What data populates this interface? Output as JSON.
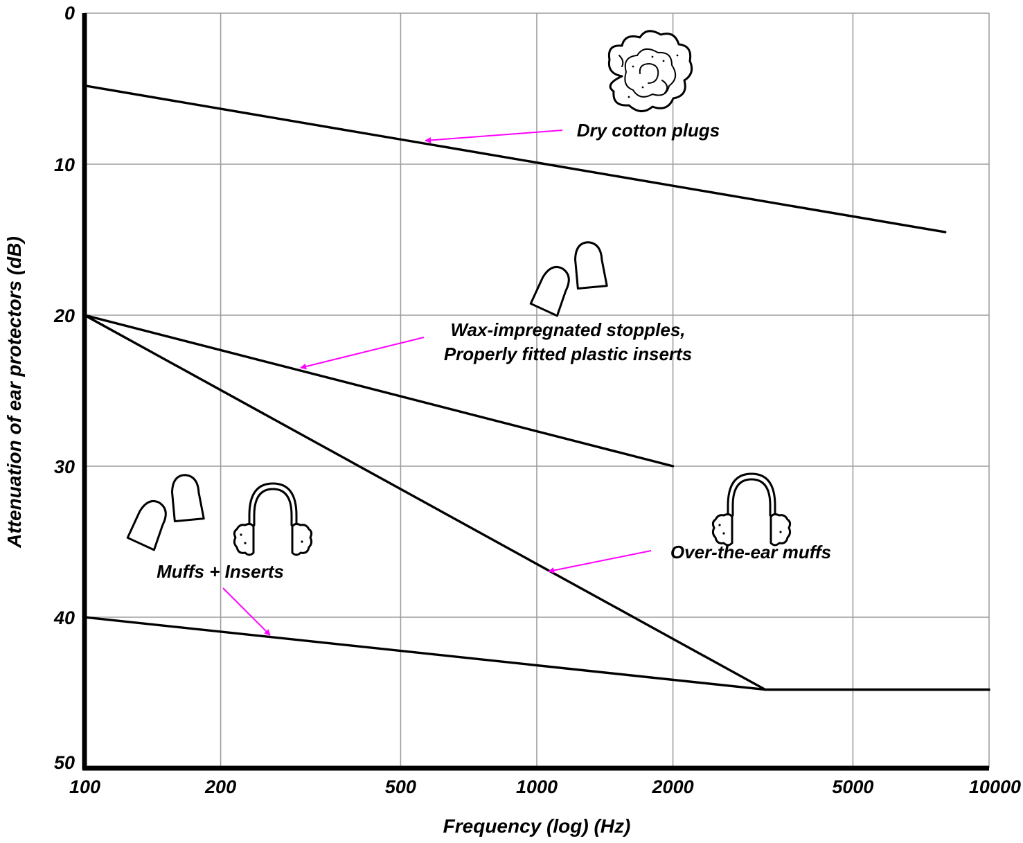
{
  "chart_data": {
    "type": "line",
    "title": "",
    "xlabel": "Frequency (log) (Hz)",
    "ylabel": "Attenuation of ear protectors (dB)",
    "x_scale": "log",
    "xlim": [
      100,
      10000
    ],
    "ylim": [
      0,
      50
    ],
    "y_inverted": true,
    "grid": true,
    "x_ticks": [
      "100",
      "200",
      "500",
      "1000",
      "2000",
      "5000",
      "10000"
    ],
    "x_tick_values": [
      100,
      200,
      500,
      1000,
      2000,
      5000,
      10000
    ],
    "y_ticks": [
      "0",
      "10",
      "20",
      "30",
      "40",
      "50"
    ],
    "y_tick_values": [
      0,
      10,
      20,
      30,
      40,
      50
    ],
    "series": [
      {
        "x": [
          100,
          8000
        ],
        "y": [
          4.8,
          14.5
        ]
      },
      {
        "x": [
          100,
          2000
        ],
        "y": [
          20,
          30
        ]
      },
      {
        "x": [
          100,
          3200,
          10000
        ],
        "y": [
          20,
          44.8,
          44.8
        ]
      },
      {
        "x": [
          100,
          3200,
          10000
        ],
        "y": [
          40,
          44.8,
          44.8
        ]
      }
    ],
    "annotations": [
      {
        "lines": [
          "Dry cotton plugs"
        ],
        "arrow_to": {
          "x": 600,
          "y": 8.4
        },
        "icon": "cotton-ball"
      },
      {
        "lines": [
          "Wax-impregnated stopples,",
          "Properly fitted plastic inserts"
        ],
        "arrow_to": {
          "x": 300,
          "y": 23.5
        },
        "icon": "earplugs"
      },
      {
        "lines": [
          "Over-the-ear muffs"
        ],
        "arrow_to": {
          "x": 1100,
          "y": 36.6
        },
        "icon": "earmuffs"
      },
      {
        "lines": [
          "Muffs + Inserts"
        ],
        "arrow_to": {
          "x": 255,
          "y": 41.3
        },
        "icon": "earplugs-and-earmuffs"
      }
    ],
    "colors": {
      "lines": "#000000",
      "grid": "#9e9e9e",
      "arrows": "#ff00ff"
    }
  }
}
